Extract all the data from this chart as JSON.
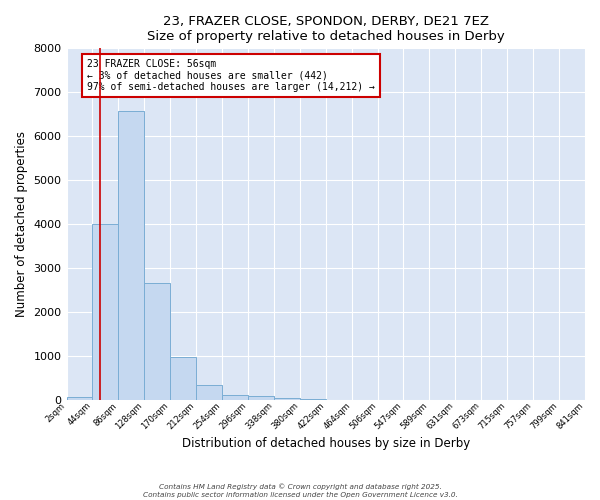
{
  "title": "23, FRAZER CLOSE, SPONDON, DERBY, DE21 7EZ",
  "subtitle": "Size of property relative to detached houses in Derby",
  "xlabel": "Distribution of detached houses by size in Derby",
  "ylabel": "Number of detached properties",
  "bar_color": "#c5d8f0",
  "bar_edge_color": "#7aadd4",
  "background_color": "#dce6f5",
  "grid_color": "#ffffff",
  "bin_edges": [
    2,
    44,
    86,
    128,
    170,
    212,
    254,
    296,
    338,
    380,
    422,
    464,
    506,
    547,
    589,
    631,
    673,
    715,
    757,
    799,
    841
  ],
  "bin_values": [
    60,
    4000,
    6580,
    2650,
    975,
    330,
    105,
    72,
    28,
    5,
    2,
    1,
    0,
    0,
    0,
    0,
    0,
    0,
    0,
    0
  ],
  "vline_x": 56,
  "vline_color": "#cc0000",
  "annotation_text": "23 FRAZER CLOSE: 56sqm\n← 3% of detached houses are smaller (442)\n97% of semi-detached houses are larger (14,212) →",
  "annotation_box_color": "#cc0000",
  "ylim": [
    0,
    8000
  ],
  "yticks": [
    0,
    1000,
    2000,
    3000,
    4000,
    5000,
    6000,
    7000,
    8000
  ],
  "footer1": "Contains HM Land Registry data © Crown copyright and database right 2025.",
  "footer2": "Contains public sector information licensed under the Open Government Licence v3.0.",
  "tick_labels": [
    "2sqm",
    "44sqm",
    "86sqm",
    "128sqm",
    "170sqm",
    "212sqm",
    "254sqm",
    "296sqm",
    "338sqm",
    "380sqm",
    "422sqm",
    "464sqm",
    "506sqm",
    "547sqm",
    "589sqm",
    "631sqm",
    "673sqm",
    "715sqm",
    "757sqm",
    "799sqm",
    "841sqm"
  ]
}
